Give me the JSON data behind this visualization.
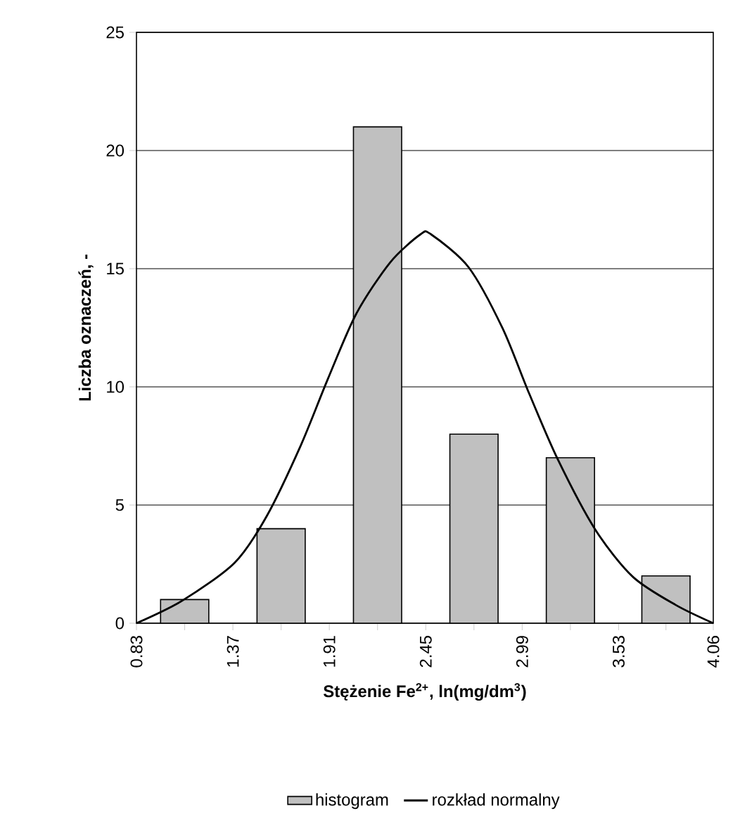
{
  "chart_data": {
    "type": "histogram",
    "xlabel": "Stężenie Fe$^{2+}$, ln(mg/dm$^{3}$)",
    "ylabel": "Liczba oznaczeń, -",
    "bins": [
      0.83,
      1.37,
      1.91,
      2.45,
      2.99,
      3.53,
      4.06
    ],
    "series": [
      {
        "name": "histogram",
        "color": "#c0c0c0",
        "values": [
          1,
          4,
          21,
          8,
          7,
          2
        ]
      },
      {
        "name": "rozkład normalny",
        "type": "line",
        "color": "#000000",
        "x": [
          0.83,
          1.09,
          1.38,
          1.56,
          1.75,
          1.9,
          2.06,
          2.25,
          2.42,
          2.48,
          2.69,
          2.88,
          3.03,
          3.19,
          3.4,
          3.61,
          3.85,
          4.06
        ],
        "values": [
          0,
          0.97,
          2.56,
          4.54,
          7.52,
          10.3,
          13.08,
          15.26,
          16.45,
          16.45,
          15.06,
          12.48,
          9.7,
          6.92,
          3.95,
          1.96,
          0.77,
          0
        ]
      }
    ],
    "xlim": [
      0.83,
      4.06
    ],
    "xticks": [
      0.83,
      {
        "value": 1.1,
        "label": null
      },
      1.37,
      {
        "value": 1.64,
        "label": null
      },
      1.91,
      {
        "value": 2.18,
        "label": null
      },
      2.45,
      {
        "value": 2.72,
        "label": null
      },
      2.99,
      {
        "value": 3.26,
        "label": null
      },
      3.53,
      {
        "value": 3.795,
        "label": null
      },
      4.06
    ],
    "ylim": [
      0,
      25
    ],
    "yticks": [
      0,
      5,
      10,
      15,
      20,
      25
    ],
    "grid": "y",
    "legend": "bottom",
    "marker": "none",
    "line_style": "solid"
  }
}
